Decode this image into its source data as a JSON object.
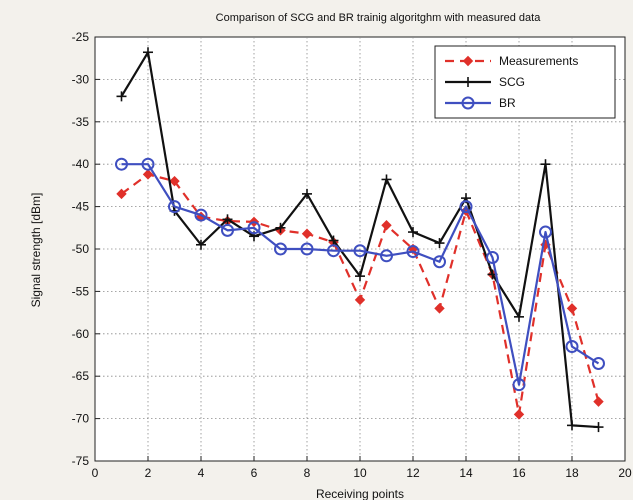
{
  "chart_data": {
    "type": "line",
    "title": "Comparison  of SCG and BR trainig algoritghm with measured data",
    "xlabel": "Receiving points",
    "ylabel": "Signal strength [dBm]",
    "xlim": [
      0,
      20
    ],
    "ylim": [
      -75,
      -25
    ],
    "xticks": [
      0,
      2,
      4,
      6,
      8,
      10,
      12,
      14,
      16,
      18,
      20
    ],
    "yticks": [
      -25,
      -30,
      -35,
      -40,
      -45,
      -50,
      -55,
      -60,
      -65,
      -70,
      -75
    ],
    "grid": true,
    "legend_position": "top-right",
    "x": [
      1,
      2,
      3,
      4,
      5,
      6,
      7,
      8,
      9,
      10,
      11,
      12,
      13,
      14,
      15,
      16,
      17,
      18,
      19
    ],
    "series": [
      {
        "name": "Measurements",
        "color": "#e0302a",
        "line_style": "dashed",
        "marker": "diamond",
        "values": [
          -43.5,
          -41.2,
          -42,
          -46.2,
          -46.7,
          -46.8,
          -47.8,
          -48.2,
          -49.2,
          -56,
          -47.2,
          -50,
          -57,
          -45.5,
          -53,
          -69.5,
          -49.5,
          -57,
          -68
        ]
      },
      {
        "name": "SCG",
        "color": "#111111",
        "line_style": "solid",
        "marker": "plus",
        "values": [
          -32,
          -26.8,
          -45.5,
          -49.5,
          -46.5,
          -48.5,
          -47.5,
          -43.5,
          -49,
          -53.2,
          -41.8,
          -48,
          -49.3,
          -44,
          -53,
          -58,
          -40,
          -70.8,
          -71
        ]
      },
      {
        "name": "BR",
        "color": "#3f4fc0",
        "line_style": "solid",
        "marker": "circle",
        "values": [
          -40,
          -40,
          -45,
          -46,
          -47.8,
          -47.5,
          -50,
          -50,
          -50.2,
          -50.2,
          -50.8,
          -50.3,
          -51.5,
          -45,
          -51,
          -66,
          -48,
          -61.5,
          -63.5
        ]
      }
    ]
  }
}
